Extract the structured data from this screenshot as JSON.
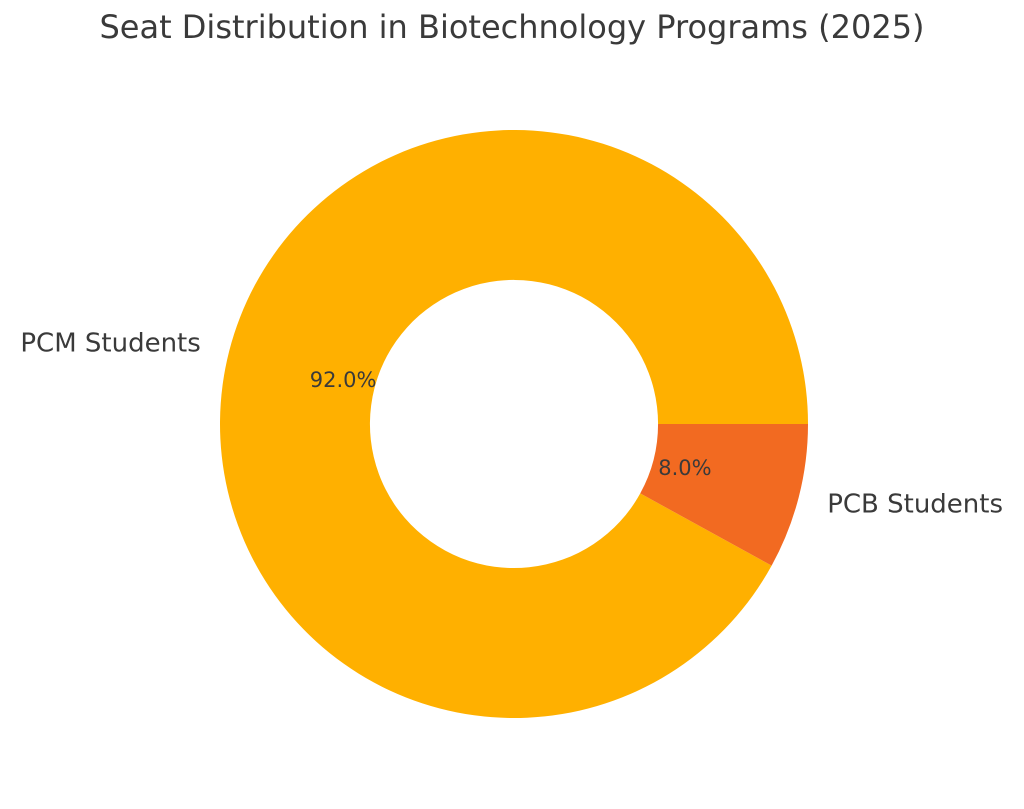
{
  "title": "Seat Distribution in Biotechnology Programs (2025)",
  "chart_data": {
    "type": "pie",
    "subtype": "donut",
    "title": "Seat Distribution in Biotechnology Programs (2025)",
    "categories": [
      "PCM Students",
      "PCB Students"
    ],
    "values": [
      92.0,
      8.0
    ],
    "pct_labels": [
      "92.0%",
      "8.0%"
    ],
    "colors": [
      "#FFB000",
      "#F26A21"
    ],
    "text_color": "#3A3A3A",
    "background": "#FFFFFF",
    "legend": "none",
    "donut_hole_ratio": 0.49,
    "start_angle_deg": 0,
    "direction": "counterclockwise",
    "pct_label_distance": 0.6,
    "category_label_distance": 1.1
  }
}
